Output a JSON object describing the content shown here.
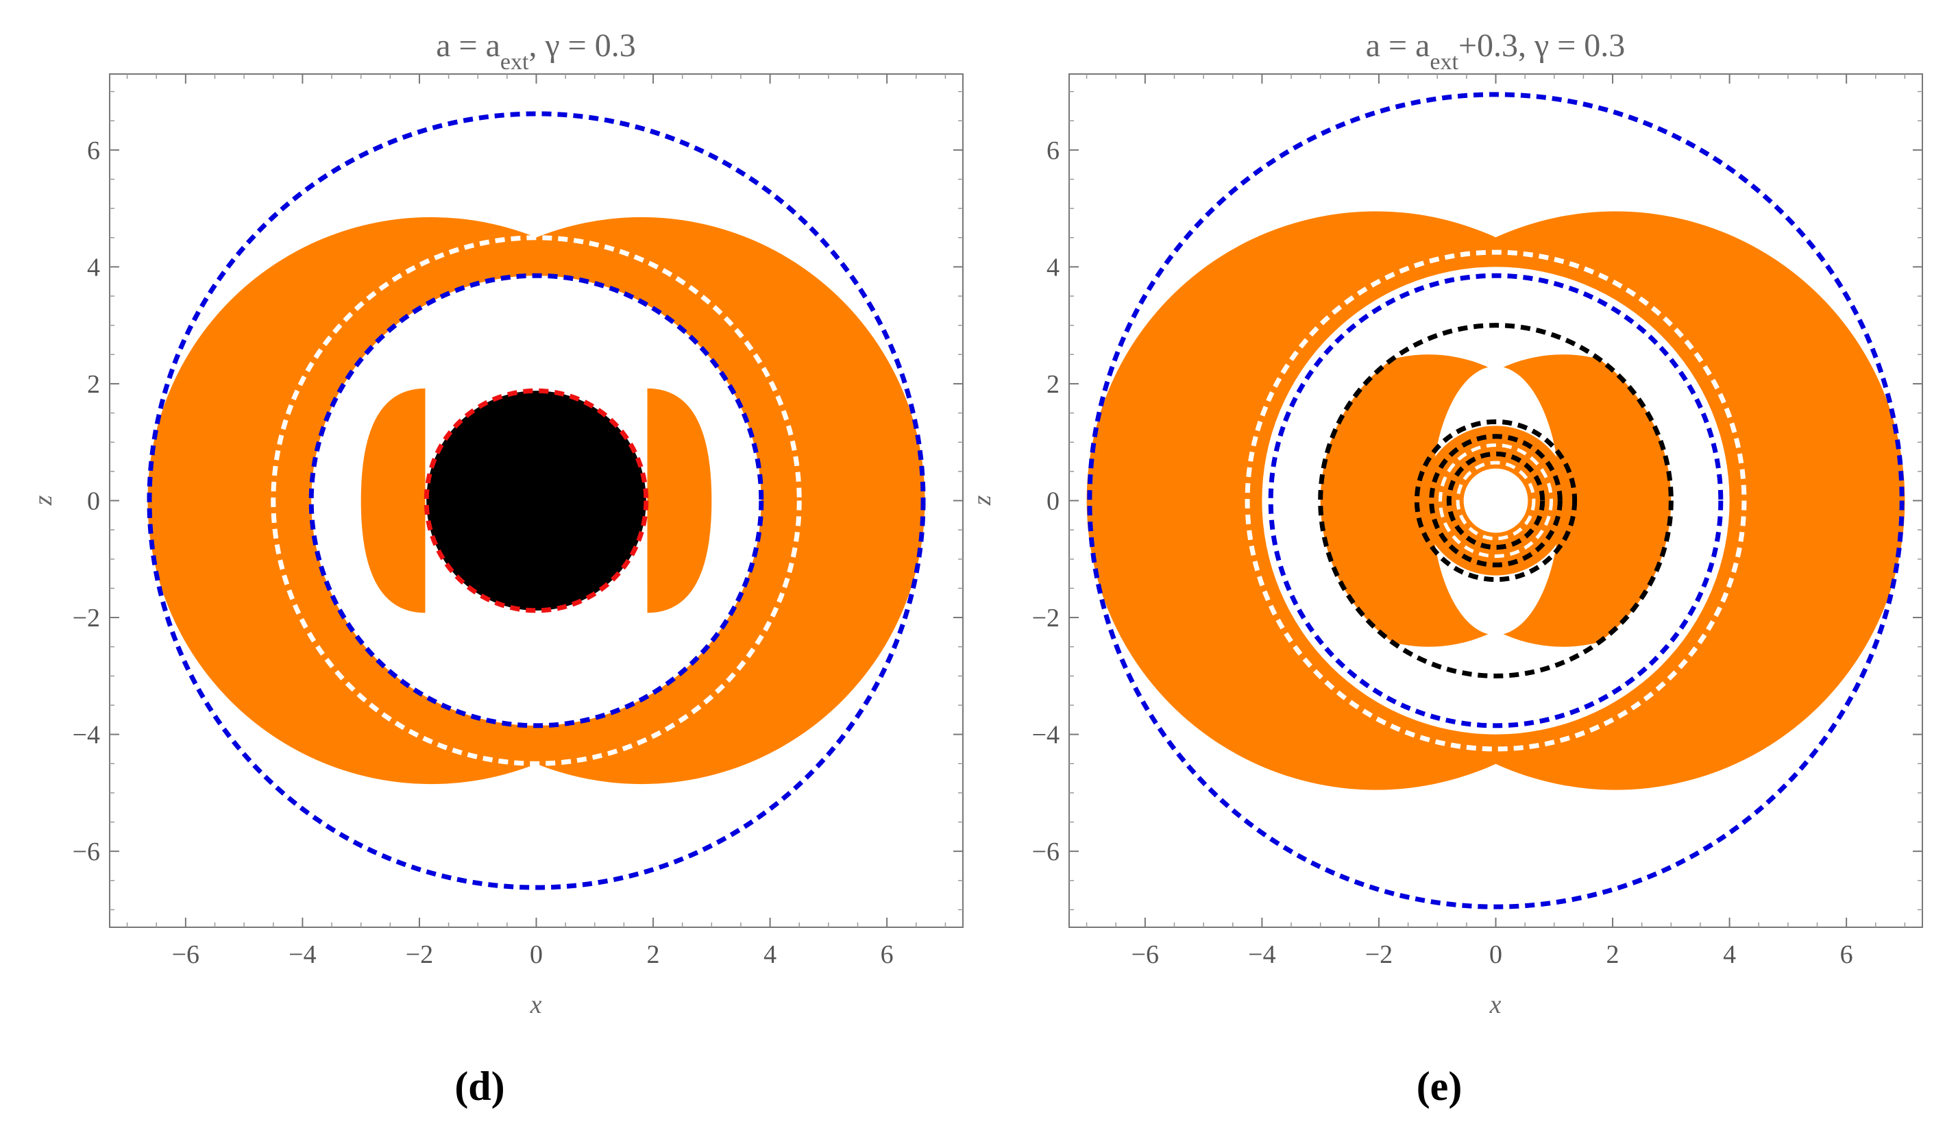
{
  "chart_data": [
    {
      "type": "contour-region",
      "panel_label": "(d)",
      "title": {
        "pre": "a = a",
        "sub": "ext",
        "post": ", γ =  0.3"
      },
      "xlabel": "x",
      "ylabel": "z",
      "xlim": [
        -7.3,
        7.3
      ],
      "ylim": [
        -7.3,
        7.3
      ],
      "xticks": [
        -6,
        -4,
        -2,
        0,
        2,
        4,
        6
      ],
      "yticks": [
        -6,
        -4,
        -2,
        0,
        2,
        4,
        6
      ],
      "colors": {
        "region": "#ff8000",
        "blue": "#0000dd",
        "white": "#ffffff",
        "black": "#000000",
        "red": "#ee1111"
      },
      "outer_lobe_radius": 4.85,
      "outer_lobe_center_offset": 1.8,
      "inner_lobe": {
        "x_inner": 1.9,
        "x_outer": 3.0,
        "half_height": 1.92
      },
      "horizon_disk_radius": 1.88,
      "blue_outer": {
        "rx": 6.62,
        "rz": 6.62
      },
      "blue_inner": {
        "rx": 3.85,
        "rz": 3.85,
        "pinch": 0.0
      },
      "white_dashed": {
        "rx": 4.5,
        "rz": 4.5
      },
      "red_dashed_radius": 1.88,
      "black_dashed": []
    },
    {
      "type": "contour-region",
      "panel_label": "(e)",
      "title": {
        "pre": "a = a",
        "sub": "ext",
        "post": "+0.3, γ =  0.3"
      },
      "xlabel": "x",
      "ylabel": "z",
      "xlim": [
        -7.3,
        7.3
      ],
      "ylim": [
        -7.3,
        7.3
      ],
      "xticks": [
        -6,
        -4,
        -2,
        0,
        2,
        4,
        6
      ],
      "yticks": [
        -6,
        -4,
        -2,
        0,
        2,
        4,
        6
      ],
      "colors": {
        "region": "#ff8000",
        "blue": "#0000dd",
        "white": "#ffffff",
        "black": "#000000",
        "red": "#ee1111"
      },
      "outer_lobe_radius": 4.95,
      "outer_lobe_center_offset": 2.05,
      "inner_big_lobe": {
        "radius": 3.05,
        "center_offset": 1.15
      },
      "inner_ring": {
        "r_outer": 1.28,
        "r_inner": 0.55
      },
      "blue_outer": {
        "rx": 6.95,
        "rz": 6.95
      },
      "blue_inner": {
        "rx": 3.85,
        "rz": 3.85,
        "pinch": 0.0
      },
      "white_dashed": {
        "rx": 4.25,
        "rz": 4.25
      },
      "white_inner_ring": [
        0.95,
        0.65
      ],
      "black_dashed": [
        3.0,
        1.35,
        1.1,
        0.8
      ]
    }
  ]
}
